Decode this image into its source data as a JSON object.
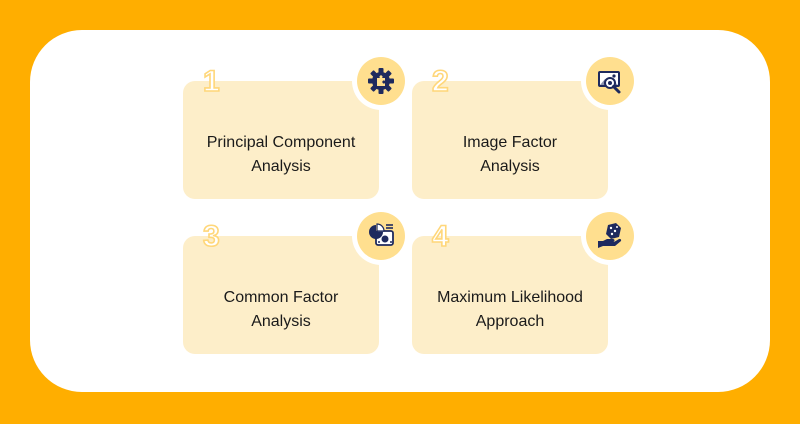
{
  "colors": {
    "background": "#ffae00",
    "panel": "#ffffff",
    "card": "#fdeec9",
    "badge": "#ffdf8f",
    "icon": "#1e2a5e",
    "number_outline": "#ffd77a"
  },
  "cards": [
    {
      "number": "1",
      "line1": "Principal Component",
      "line2": "Analysis",
      "icon": "gear-puzzle-icon"
    },
    {
      "number": "2",
      "line1": "Image Factor",
      "line2": "Analysis",
      "icon": "image-search-icon"
    },
    {
      "number": "3",
      "line1": "Common Factor",
      "line2": "Analysis",
      "icon": "dashboard-report-icon"
    },
    {
      "number": "4",
      "line1": "Maximum Likelihood",
      "line2": "Approach",
      "icon": "hand-dice-icon"
    }
  ]
}
